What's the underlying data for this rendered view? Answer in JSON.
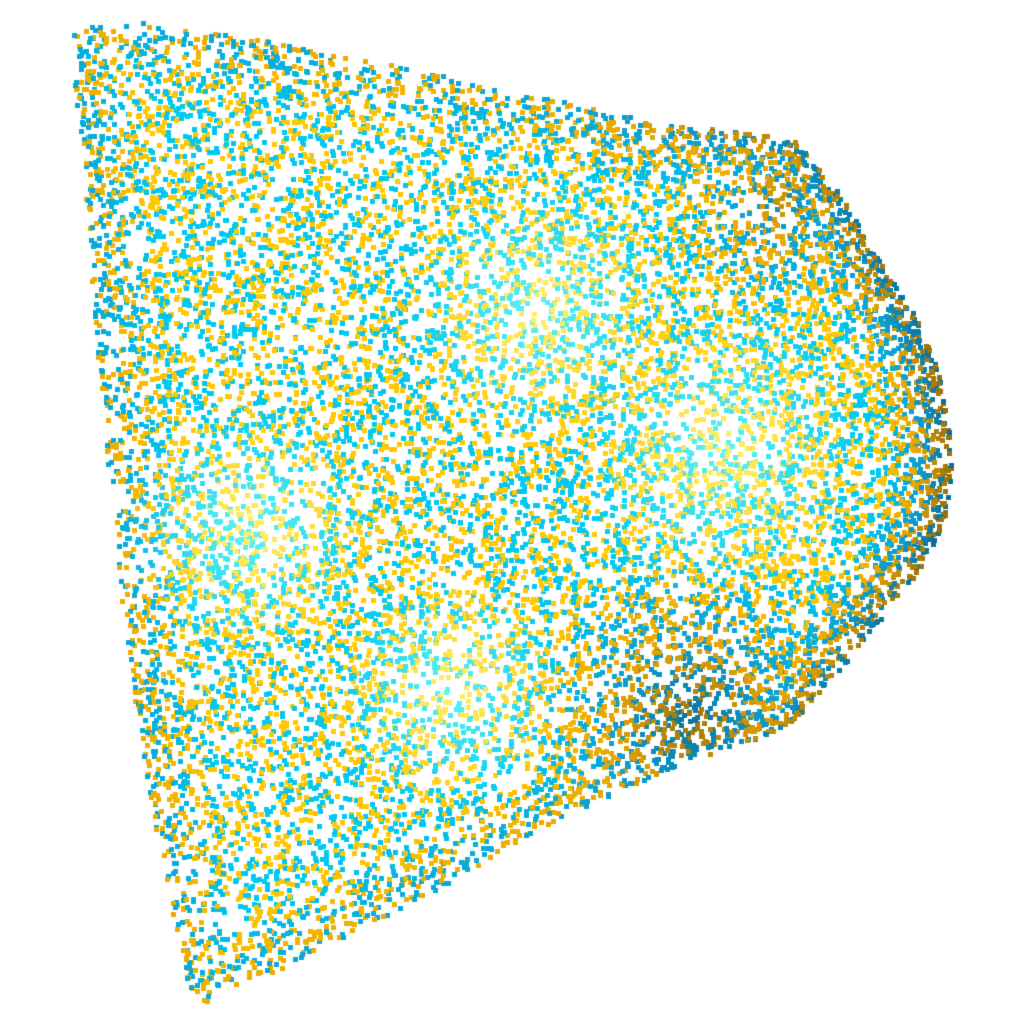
{
  "scene": {
    "subject": "point-cloud",
    "palette": {
      "background": "#ffffff",
      "blue_bright": "#00c8f0",
      "blue_mid": "#0aa0d2",
      "blue_dark": "#0a6e96",
      "gold_bright": "#ffc800",
      "gold_mid": "#e6a500",
      "gold_dark": "#966e0a",
      "highlight_cyan": "#7dfff5",
      "highlight_yellow": "#ffff96"
    }
  }
}
